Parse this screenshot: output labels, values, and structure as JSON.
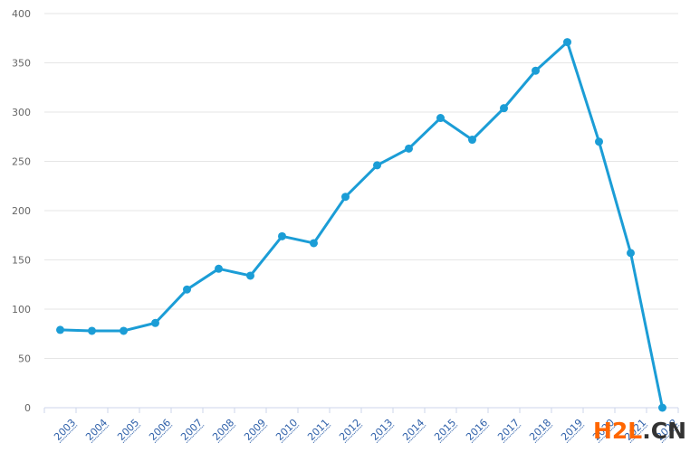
{
  "chart_data": {
    "type": "line",
    "title": "",
    "xlabel": "",
    "ylabel": "",
    "categories": [
      "2003",
      "2004",
      "2005",
      "2006",
      "2007",
      "2008",
      "2009",
      "2010",
      "2011",
      "2012",
      "2013",
      "2014",
      "2015",
      "2016",
      "2017",
      "2018",
      "2019",
      "2020",
      "2021",
      "2022"
    ],
    "values": [
      79,
      78,
      78,
      86,
      120,
      141,
      134,
      174,
      167,
      214,
      246,
      263,
      294,
      272,
      304,
      342,
      371,
      270,
      157,
      0
    ],
    "ylim": [
      0,
      400
    ],
    "y_ticks": [
      0,
      50,
      100,
      150,
      200,
      250,
      300,
      350,
      400
    ],
    "grid": true,
    "legend": "none",
    "marker": "circle",
    "colors": {
      "series": "#1b9dd6",
      "grid": "#e6e6e6",
      "axis": "#ccd6eb",
      "y_label": "#666666",
      "x_label": "#2d5fa9"
    }
  },
  "watermark": {
    "primary": "H2L",
    "secondary": ".CN",
    "primary_color": "#ff6600",
    "secondary_color": "#333333"
  }
}
